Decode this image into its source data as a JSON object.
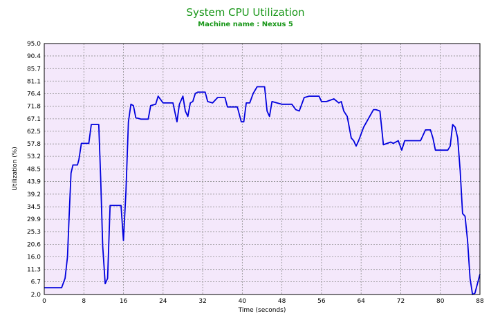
{
  "chart_data": {
    "type": "line",
    "title": "System CPU Utilization",
    "subtitle": "Machine name : Nexus 5",
    "xlabel": "Time (seconds)",
    "ylabel": "Utilization (%)",
    "xlim": [
      0,
      88
    ],
    "ylim": [
      2.0,
      95.0
    ],
    "x_ticks": [
      "0",
      "8",
      "16",
      "24",
      "32",
      "40",
      "48",
      "56",
      "64",
      "72",
      "80",
      "88"
    ],
    "y_ticks": [
      "2.0",
      "6.7",
      "11.3",
      "16.0",
      "20.6",
      "25.3",
      "29.9",
      "34.5",
      "39.2",
      "43.9",
      "48.5",
      "53.2",
      "57.8",
      "62.5",
      "67.1",
      "71.8",
      "76.4",
      "81.1",
      "85.7",
      "90.4",
      "95.0"
    ],
    "grid": true,
    "colors": {
      "line": "#0000dd",
      "plot_bg": "#f4e8fb",
      "grid": "#8c8c8c",
      "title": "#179617"
    },
    "series": [
      {
        "x": [
          0,
          3.5,
          4.2,
          4.7,
          5.0,
          5.4,
          5.8,
          6.7,
          7.0,
          7.5,
          8.5,
          9.0,
          9.5,
          11.0,
          11.4,
          11.8,
          12.3,
          12.8,
          13.3,
          13.7,
          15.5,
          16.0,
          16.5,
          17.0,
          17.5,
          18.0,
          18.5,
          19.5,
          21.0,
          21.5,
          22.5,
          23.0,
          24.0,
          24.5,
          26.0,
          26.8,
          27.3,
          28.0,
          28.5,
          29.0,
          29.5,
          30.0,
          30.5,
          31.0,
          32.5,
          33.0,
          34.0,
          35.0,
          36.5,
          37.0,
          39.0,
          39.8,
          40.3,
          40.8,
          41.5,
          42.2,
          43.0,
          44.5,
          45.0,
          45.5,
          46.0,
          47.0,
          48.0,
          50.0,
          50.8,
          51.5,
          52.5,
          53.5,
          55.5,
          56.0,
          57.0,
          58.5,
          59.5,
          60.0,
          60.5,
          61.2,
          62.0,
          62.5,
          63.0,
          63.5,
          64.5,
          66.5,
          67.0,
          67.8,
          68.5,
          70.0,
          70.5,
          71.5,
          72.2,
          72.8,
          75.5,
          76.0,
          77.0,
          78.0,
          78.5,
          79.0,
          81.5,
          82.0,
          82.5,
          83.0,
          83.5,
          84.0,
          84.5,
          85.0,
          85.5,
          86.0,
          86.5,
          87.0,
          88.0
        ],
        "y": [
          4.5,
          4.5,
          8.0,
          16.0,
          30.0,
          47.0,
          50.0,
          50.0,
          52.0,
          58.0,
          58.0,
          58.0,
          65.0,
          65.0,
          45.0,
          20.0,
          6.0,
          8.0,
          35.0,
          35.0,
          35.0,
          22.0,
          40.0,
          66.0,
          72.5,
          72.0,
          67.5,
          67.0,
          67.0,
          72.0,
          72.5,
          75.5,
          73.0,
          73.0,
          73.0,
          66.0,
          72.5,
          75.5,
          70.0,
          68.0,
          73.0,
          73.5,
          76.5,
          77.0,
          77.0,
          73.5,
          73.0,
          75.0,
          75.0,
          71.5,
          71.5,
          66.0,
          66.0,
          73.0,
          73.0,
          76.5,
          79.0,
          79.0,
          70.0,
          68.0,
          73.5,
          73.0,
          72.5,
          72.5,
          70.5,
          70.0,
          75.0,
          75.5,
          75.5,
          73.5,
          73.5,
          74.5,
          73.0,
          73.5,
          70.0,
          68.0,
          60.0,
          59.0,
          57.0,
          59.0,
          64.0,
          70.5,
          70.5,
          70.0,
          57.5,
          58.5,
          58.0,
          59.0,
          55.5,
          59.0,
          59.0,
          59.0,
          63.0,
          63.0,
          60.0,
          55.5,
          55.5,
          57.0,
          65.0,
          64.0,
          60.0,
          48.0,
          32.0,
          31.0,
          22.0,
          8.0,
          2.0,
          2.5,
          9.5
        ]
      }
    ]
  }
}
